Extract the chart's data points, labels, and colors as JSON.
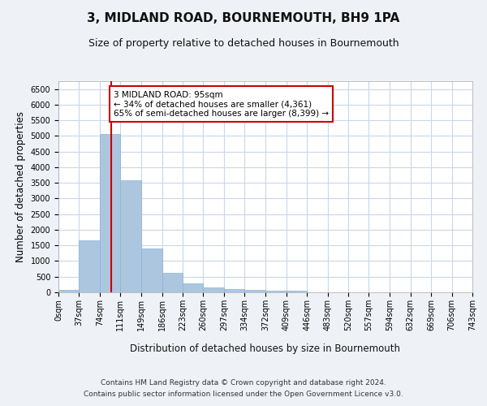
{
  "title": "3, MIDLAND ROAD, BOURNEMOUTH, BH9 1PA",
  "subtitle": "Size of property relative to detached houses in Bournemouth",
  "xlabel": "Distribution of detached houses by size in Bournemouth",
  "ylabel": "Number of detached properties",
  "footer_line1": "Contains HM Land Registry data © Crown copyright and database right 2024.",
  "footer_line2": "Contains public sector information licensed under the Open Government Licence v3.0.",
  "bar_color": "#adc6e0",
  "bar_edge_color": "#8ab4d4",
  "grid_color": "#c8d8ea",
  "vline_color": "#cc0000",
  "vline_x": 95,
  "annotation_text": "3 MIDLAND ROAD: 95sqm\n← 34% of detached houses are smaller (4,361)\n65% of semi-detached houses are larger (8,399) →",
  "annotation_box_color": "#cc0000",
  "bin_edges": [
    0,
    37,
    74,
    111,
    149,
    186,
    223,
    260,
    297,
    334,
    372,
    409,
    446,
    483,
    520,
    557,
    594,
    632,
    669,
    706,
    743
  ],
  "bin_heights": [
    75,
    1650,
    5060,
    3590,
    1410,
    615,
    295,
    145,
    100,
    70,
    50,
    55,
    5,
    5,
    5,
    5,
    5,
    5,
    5,
    5
  ],
  "ylim": [
    0,
    6750
  ],
  "yticks": [
    0,
    500,
    1000,
    1500,
    2000,
    2500,
    3000,
    3500,
    4000,
    4500,
    5000,
    5500,
    6000,
    6500
  ],
  "xlim": [
    0,
    743
  ],
  "xtick_positions": [
    0,
    37,
    74,
    111,
    149,
    186,
    223,
    260,
    297,
    334,
    372,
    409,
    446,
    483,
    520,
    557,
    594,
    632,
    669,
    706,
    743
  ],
  "xtick_labels": [
    "0sqm",
    "37sqm",
    "74sqm",
    "111sqm",
    "149sqm",
    "186sqm",
    "223sqm",
    "260sqm",
    "297sqm",
    "334sqm",
    "372sqm",
    "409sqm",
    "446sqm",
    "483sqm",
    "520sqm",
    "557sqm",
    "594sqm",
    "632sqm",
    "669sqm",
    "706sqm",
    "743sqm"
  ],
  "bg_color": "#eef2f7",
  "plot_bg_color": "#ffffff",
  "title_fontsize": 11,
  "subtitle_fontsize": 9,
  "label_fontsize": 8.5,
  "tick_fontsize": 7,
  "footer_fontsize": 6.5,
  "annotation_fontsize": 7.5
}
